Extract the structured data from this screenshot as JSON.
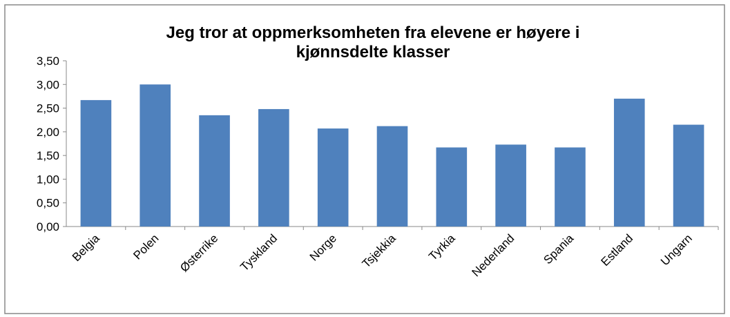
{
  "chart_data": {
    "type": "bar",
    "title": "Jeg tror at oppmerksomheten fra elevene er høyere i kjønnsdelte klasser",
    "categories": [
      "Belgia",
      "Polen",
      "Østerrike",
      "Tyskland",
      "Norge",
      "Tsjekkia",
      "Tyrkia",
      "Nederland",
      "Spania",
      "Estland",
      "Ungarn"
    ],
    "values": [
      2.67,
      3.0,
      2.35,
      2.48,
      2.07,
      2.12,
      1.67,
      1.73,
      1.67,
      2.7,
      2.15
    ],
    "color": "#4f81bd",
    "ylim": [
      0,
      3.5
    ],
    "yticks": [
      {
        "value": 0,
        "label": "0,00"
      },
      {
        "value": 0.5,
        "label": "0,50"
      },
      {
        "value": 1,
        "label": "1,00"
      },
      {
        "value": 1.5,
        "label": "1,50"
      },
      {
        "value": 2,
        "label": "2,00"
      },
      {
        "value": 2.5,
        "label": "2,50"
      },
      {
        "value": 3,
        "label": "3,00"
      },
      {
        "value": 3.5,
        "label": "3,50"
      }
    ],
    "grid": false
  }
}
